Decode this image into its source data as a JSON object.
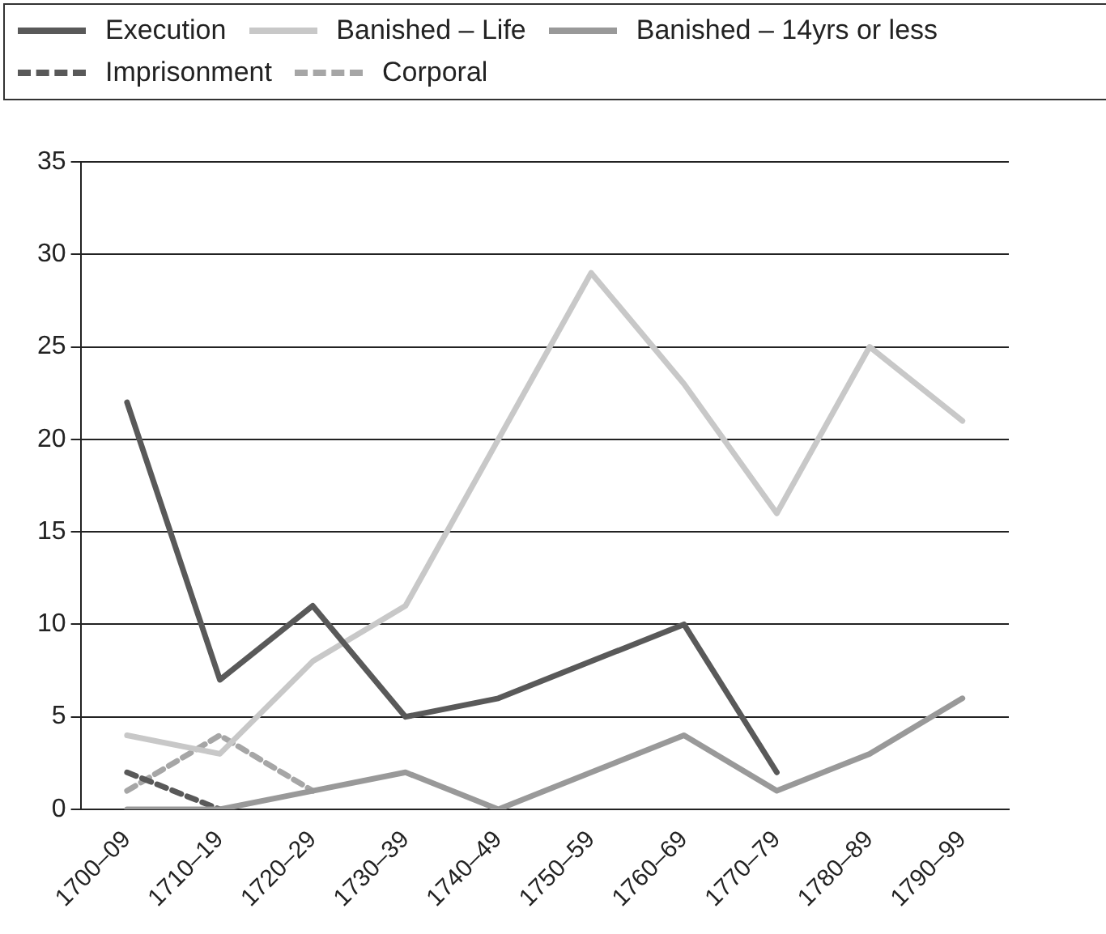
{
  "chart_data": {
    "type": "line",
    "categories": [
      "1700–09",
      "1710–19",
      "1720–29",
      "1730–39",
      "1740–49",
      "1750–59",
      "1760–69",
      "1770–79",
      "1780–89",
      "1790–99"
    ],
    "series": [
      {
        "name": "Execution",
        "color": "#595959",
        "values": [
          22,
          7,
          11,
          5,
          6,
          8,
          10,
          2,
          null,
          null
        ]
      },
      {
        "name": "Banished – Life",
        "color": "#c8c8c8",
        "values": [
          4,
          3,
          8,
          11,
          20,
          29,
          23,
          16,
          25,
          21
        ]
      },
      {
        "name": "Banished – 14yrs or less",
        "color": "#999999",
        "values": [
          0,
          0,
          1,
          2,
          0,
          2,
          4,
          1,
          3,
          6
        ]
      },
      {
        "name": "Imprisonment",
        "color": "#595959",
        "line_style": "dashed",
        "values": [
          2,
          0,
          null,
          null,
          null,
          null,
          null,
          null,
          null,
          null
        ]
      },
      {
        "name": "Corporal",
        "color": "#a6a6a6",
        "line_style": "dashed",
        "values": [
          1,
          4,
          1,
          null,
          null,
          null,
          null,
          null,
          null,
          null
        ]
      }
    ],
    "ylim": [
      0,
      35
    ],
    "yticks": [
      0,
      5,
      10,
      15,
      20,
      25,
      30,
      35
    ],
    "grid": "y",
    "legend": "top",
    "marker": "none"
  }
}
